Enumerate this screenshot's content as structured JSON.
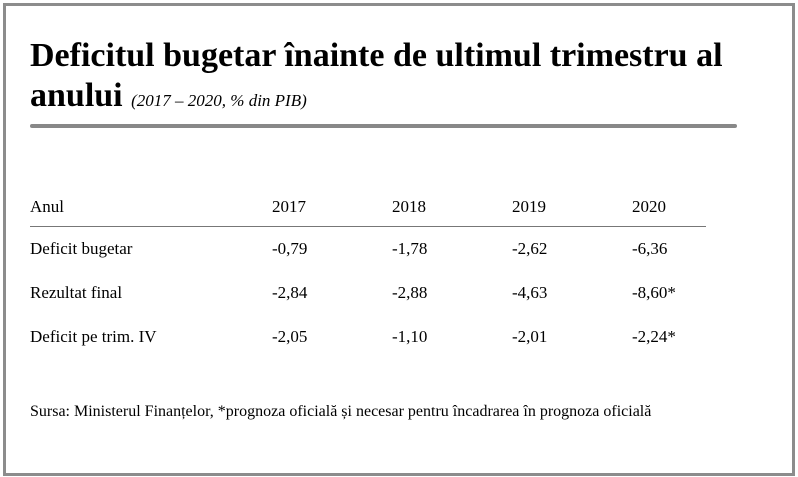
{
  "title": "Deficitul bugetar înainte de ultimul trimestru al anului",
  "subtitle": "(2017 – 2020, % din PIB)",
  "table": {
    "headers": [
      "Anul",
      "2017",
      "2018",
      "2019",
      "2020"
    ],
    "rows": [
      [
        "Deficit bugetar",
        "-0,79",
        "-1,78",
        "-2,62",
        "-6,36"
      ],
      [
        "Rezultat final",
        "-2,84",
        "-2,88",
        "-4,63",
        "-8,60*"
      ],
      [
        "Deficit pe trim. IV",
        "-2,05",
        "-1,10",
        "-2,01",
        "-2,24*"
      ]
    ]
  },
  "source": "Sursa: Ministerul Finanțelor, *prognoza oficială și necesar pentru încadrarea în prognoza oficială",
  "colors": {
    "frame": "#8c8c8c",
    "rule": "#888888",
    "text": "#000000"
  }
}
